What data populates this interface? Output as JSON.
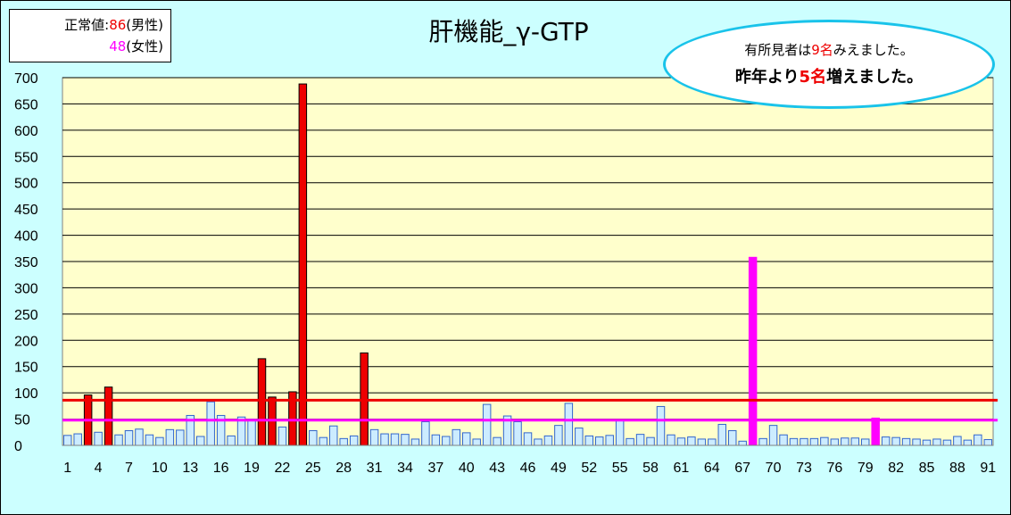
{
  "title": "肝機能_γ-GTP",
  "legend": {
    "label": "正常値:",
    "male_value": "86",
    "male_label": "(男性)",
    "female_value": "48",
    "female_label": "(女性)"
  },
  "callout": {
    "line1_prefix": "有所見者は",
    "line1_count": "9名",
    "line1_suffix": "みえました。",
    "line2_prefix": "昨年より",
    "line2_count": "5名",
    "line2_suffix": "増えました。"
  },
  "colors": {
    "background": "#ccffff",
    "plot_area": "#ffffcc",
    "normal_bar": "#ccecff",
    "normal_bar_edge": "#3366cc",
    "male_abnormal_bar": "#ee0000",
    "female_abnormal_bar": "#ff00ff",
    "male_threshold_line": "#ee0000",
    "female_threshold_line": "#ff00ff",
    "callout_border": "#19c3ea"
  },
  "chart_data": {
    "type": "bar",
    "ylim": [
      0,
      700
    ],
    "y_ticks": [
      "0",
      "50",
      "100",
      "150",
      "200",
      "250",
      "300",
      "350",
      "400",
      "450",
      "500",
      "550",
      "600",
      "650",
      "700"
    ],
    "x_tick_labels": [
      "1",
      "4",
      "7",
      "10",
      "13",
      "16",
      "19",
      "22",
      "25",
      "28",
      "31",
      "34",
      "37",
      "40",
      "43",
      "46",
      "49",
      "52",
      "55",
      "58",
      "61",
      "64",
      "67",
      "70",
      "73",
      "76",
      "79",
      "82",
      "85",
      "88",
      "91"
    ],
    "grid": "horizontal",
    "thresholds": [
      {
        "value": 86,
        "color": "#ee0000"
      },
      {
        "value": 48,
        "color": "#ff00ff"
      }
    ],
    "values": [
      19,
      22,
      96,
      25,
      111,
      20,
      28,
      31,
      20,
      15,
      30,
      29,
      57,
      17,
      83,
      57,
      18,
      54,
      50,
      165,
      92,
      35,
      102,
      688,
      28,
      15,
      37,
      13,
      18,
      176,
      30,
      22,
      22,
      21,
      12,
      45,
      20,
      17,
      30,
      24,
      12,
      78,
      15,
      56,
      45,
      24,
      12,
      18,
      38,
      80,
      33,
      18,
      16,
      19,
      47,
      13,
      21,
      15,
      74,
      20,
      14,
      16,
      12,
      12,
      40,
      28,
      8,
      358,
      13,
      38,
      20,
      13,
      13,
      13,
      15,
      12,
      14,
      14,
      12,
      52,
      16,
      15,
      13,
      12,
      10,
      12,
      10,
      17,
      10,
      20,
      11
    ],
    "categories": [
      "normal",
      "normal",
      "male",
      "normal",
      "male",
      "normal",
      "normal",
      "normal",
      "normal",
      "normal",
      "normal",
      "normal",
      "normal",
      "normal",
      "normal",
      "normal",
      "normal",
      "normal",
      "normal",
      "male",
      "male",
      "normal",
      "male",
      "male",
      "normal",
      "normal",
      "normal",
      "normal",
      "normal",
      "male",
      "normal",
      "normal",
      "normal",
      "normal",
      "normal",
      "normal",
      "normal",
      "normal",
      "normal",
      "normal",
      "normal",
      "normal",
      "normal",
      "normal",
      "normal",
      "normal",
      "normal",
      "normal",
      "normal",
      "normal",
      "normal",
      "normal",
      "normal",
      "normal",
      "normal",
      "normal",
      "normal",
      "normal",
      "normal",
      "normal",
      "normal",
      "normal",
      "normal",
      "normal",
      "normal",
      "normal",
      "normal",
      "female",
      "normal",
      "normal",
      "normal",
      "normal",
      "normal",
      "normal",
      "normal",
      "normal",
      "normal",
      "normal",
      "normal",
      "female",
      "normal",
      "normal",
      "normal",
      "normal",
      "normal",
      "normal",
      "normal",
      "normal",
      "normal",
      "normal",
      "normal"
    ]
  }
}
